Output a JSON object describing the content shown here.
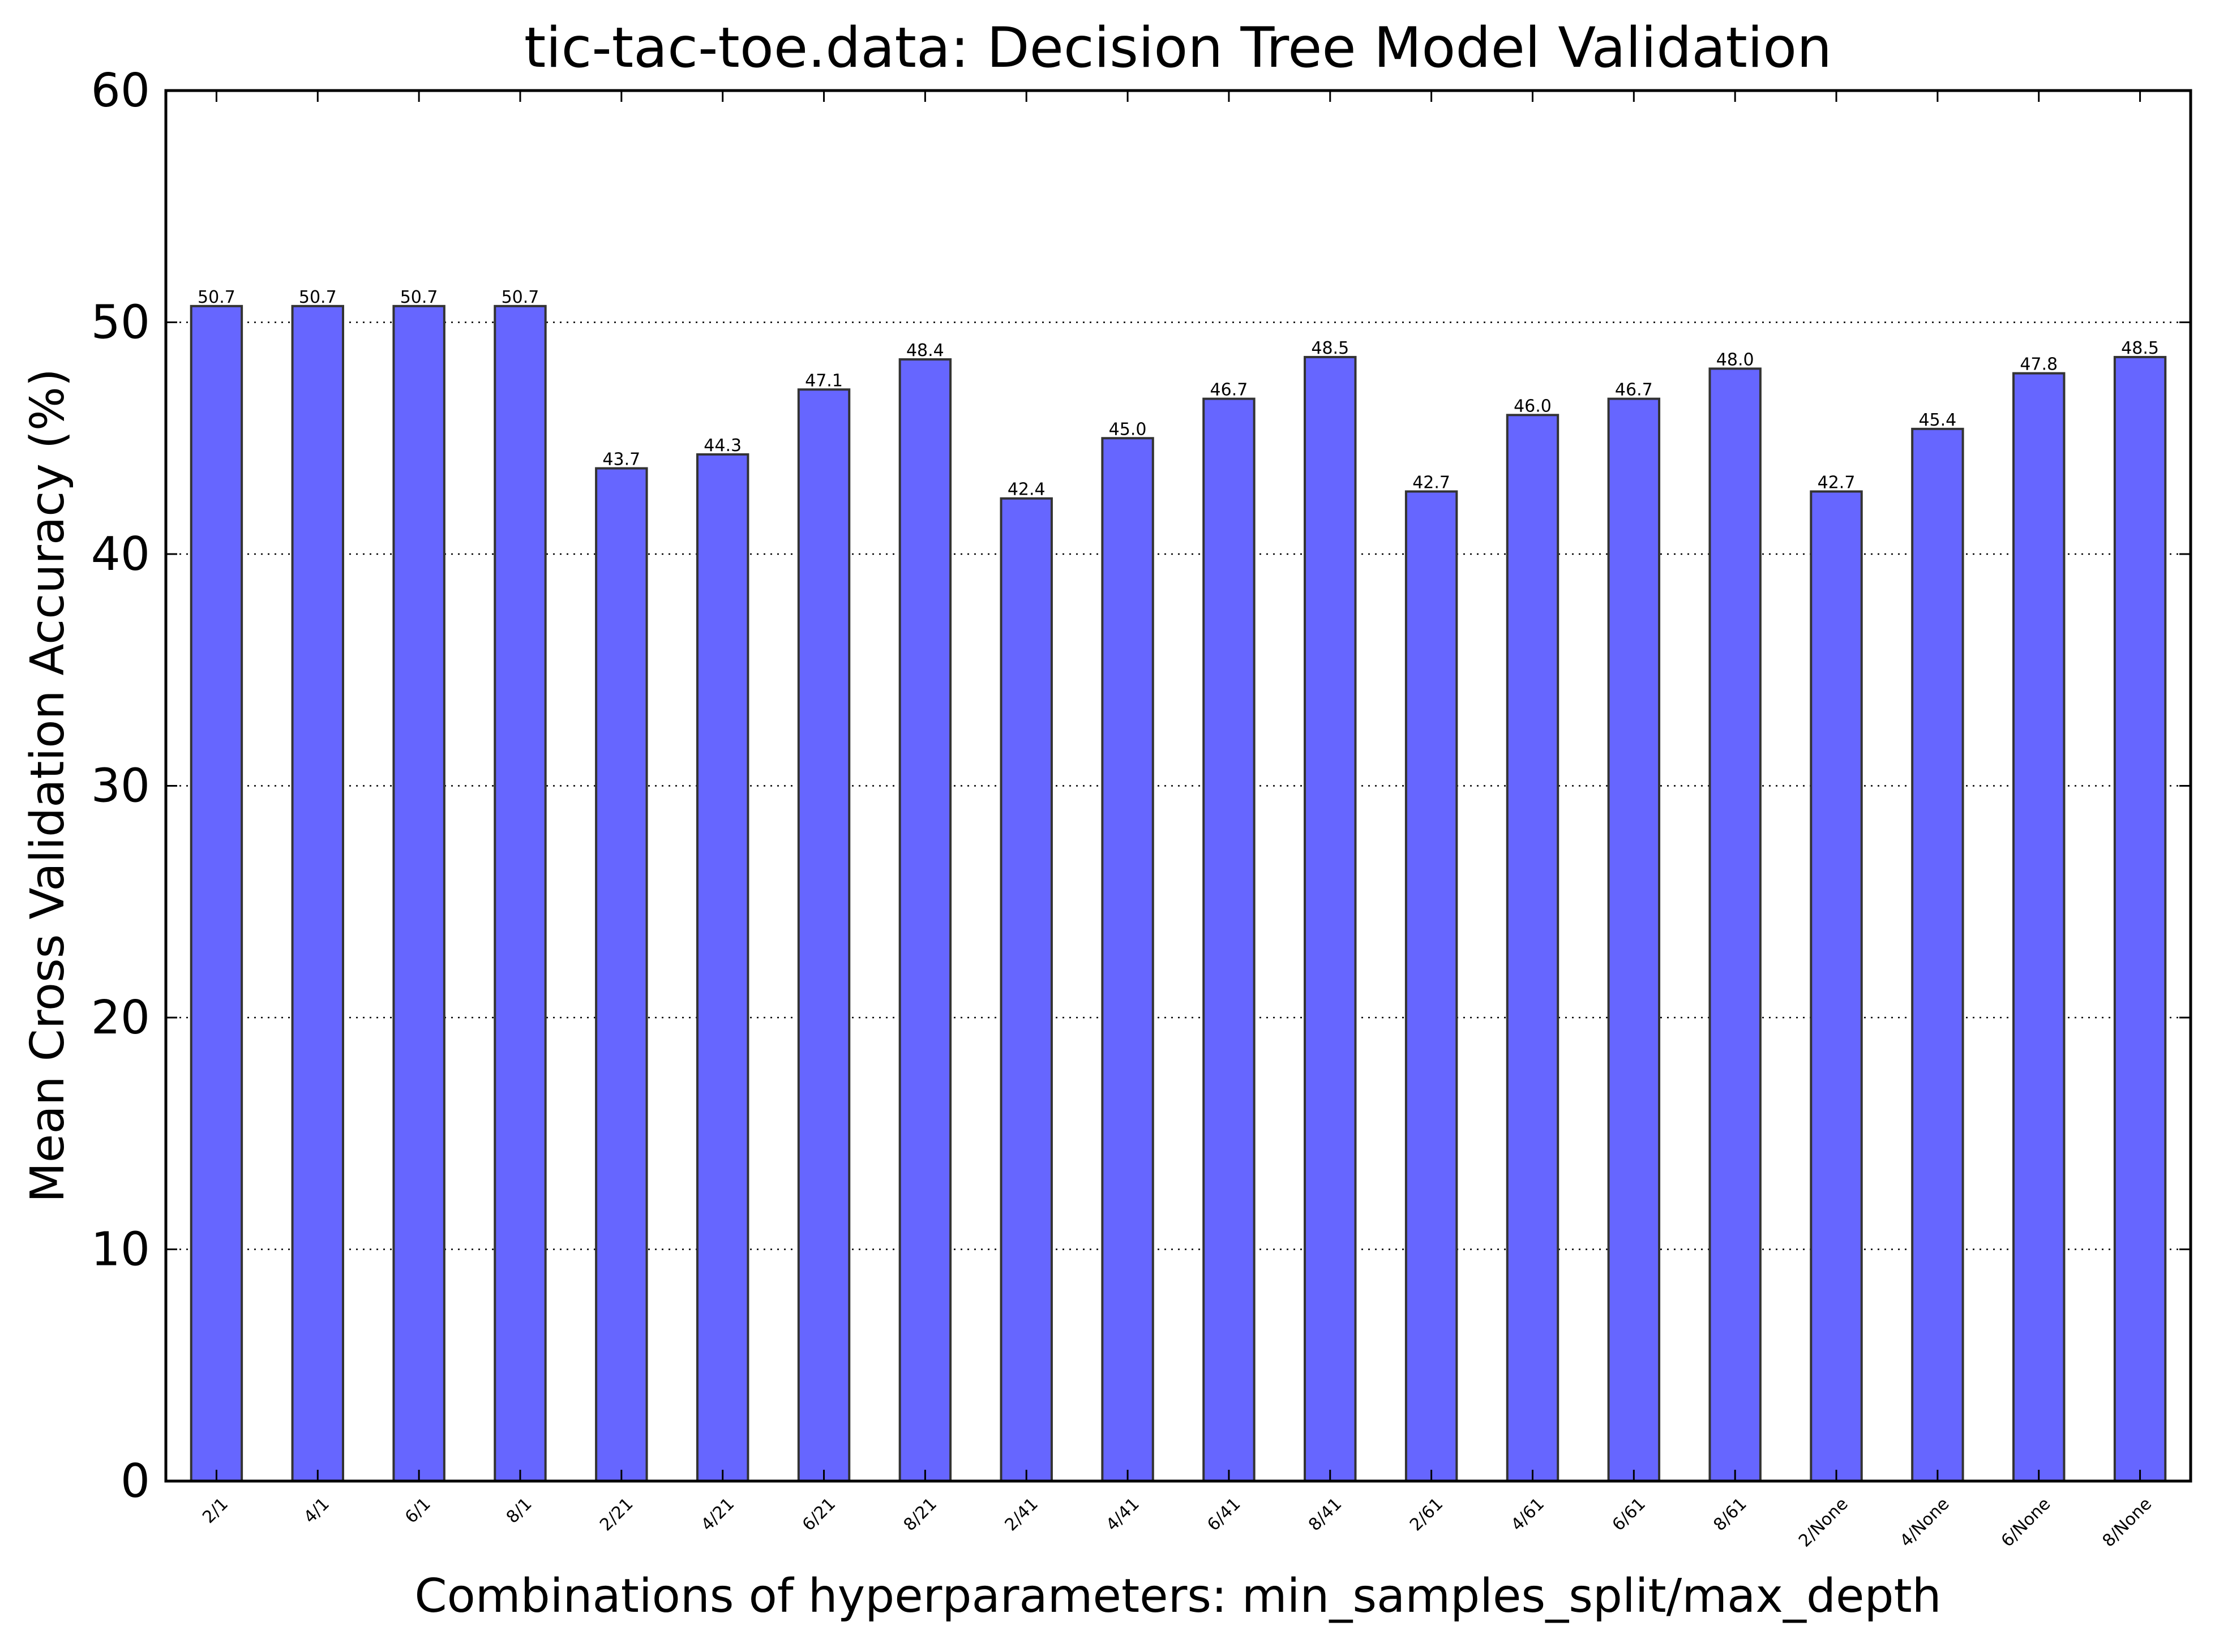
{
  "chart_data": {
    "type": "bar",
    "title": "tic-tac-toe.data: Decision Tree Model Validation",
    "xlabel": "Combinations of hyperparameters: min_samples_split/max_depth",
    "ylabel": "Mean Cross Validation Accuracy (%)",
    "ylim": [
      0,
      60
    ],
    "yticks": [
      0,
      10,
      20,
      30,
      40,
      50,
      60
    ],
    "ytick_labels": [
      "0",
      "10",
      "20",
      "30",
      "40",
      "50",
      "60"
    ],
    "grid": "horizontal-dotted",
    "bar_color": "#6666ff",
    "edge_color": "#333333",
    "categories": [
      "2/1",
      "4/1",
      "6/1",
      "8/1",
      "2/21",
      "4/21",
      "6/21",
      "8/21",
      "2/41",
      "4/41",
      "6/41",
      "8/41",
      "2/61",
      "4/61",
      "6/61",
      "8/61",
      "2/None",
      "4/None",
      "6/None",
      "8/None"
    ],
    "values": [
      50.7,
      50.7,
      50.7,
      50.7,
      43.7,
      44.3,
      47.1,
      48.4,
      42.4,
      45.0,
      46.7,
      48.5,
      42.7,
      46.0,
      46.7,
      48.0,
      42.7,
      45.4,
      47.8,
      48.5
    ],
    "value_labels": [
      "50.7",
      "50.7",
      "50.7",
      "50.7",
      "43.7",
      "44.3",
      "47.1",
      "48.4",
      "42.4",
      "45.0",
      "46.7",
      "48.5",
      "42.7",
      "46.0",
      "46.7",
      "48.0",
      "42.7",
      "45.4",
      "47.8",
      "48.5"
    ]
  }
}
